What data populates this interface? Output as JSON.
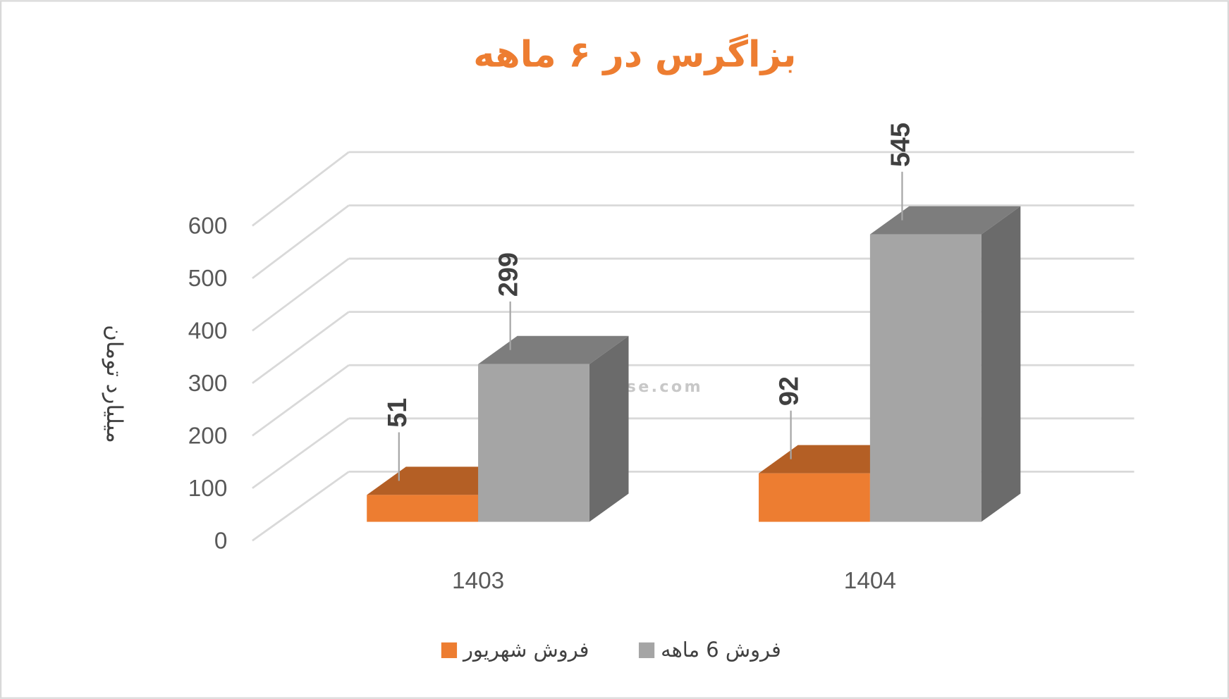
{
  "chart_data": {
    "type": "bar",
    "title": "بزاگرس در ۶ ماهه",
    "y_label": "میلیارد تومان",
    "watermark": "nabzebourse.com",
    "categories": [
      "1403",
      "1404"
    ],
    "series": [
      {
        "name": "فروش شهریور",
        "color": "#ED7D31",
        "values": [
          51,
          92
        ]
      },
      {
        "name": "فروش 6 ماهه",
        "color": "#A5A5A5",
        "values": [
          299,
          545
        ]
      }
    ],
    "ylim": [
      0,
      600
    ],
    "yticks": [
      0,
      100,
      200,
      300,
      400,
      500,
      600
    ],
    "grid": true
  }
}
